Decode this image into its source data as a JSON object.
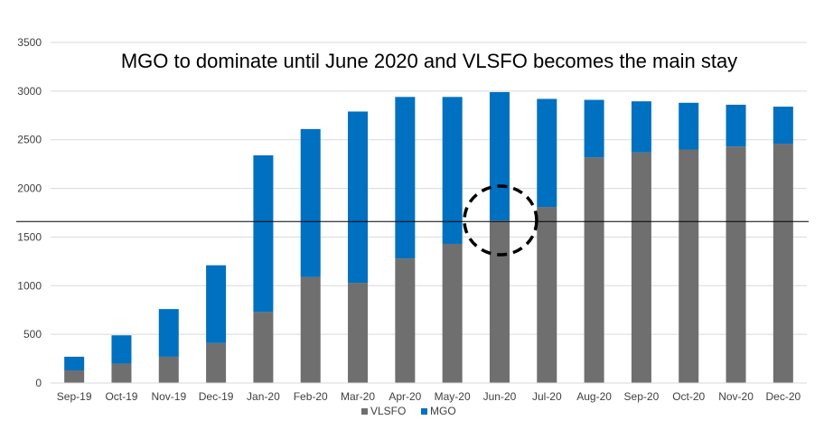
{
  "chart_data": {
    "type": "bar",
    "stacked": true,
    "title": "MGO to dominate until June 2020 and VLSFO becomes the main stay",
    "xlabel": "",
    "ylabel": "",
    "ylim": [
      0,
      3500
    ],
    "yticks": [
      0,
      500,
      1000,
      1500,
      2000,
      2500,
      3000,
      3500
    ],
    "grid": true,
    "legend_position": "bottom",
    "categories": [
      "Sep-19",
      "Oct-19",
      "Nov-19",
      "Dec-19",
      "Jan-20",
      "Feb-20",
      "Mar-20",
      "Apr-20",
      "May-20",
      "Jun-20",
      "Jul-20",
      "Aug-20",
      "Sep-20",
      "Oct-20",
      "Nov-20",
      "Dec-20"
    ],
    "series": [
      {
        "name": "VLSFO",
        "color": "#6f6f6f",
        "values": [
          130,
          200,
          270,
          410,
          730,
          1090,
          1030,
          1280,
          1430,
          1670,
          1810,
          2320,
          2370,
          2400,
          2430,
          2460
        ]
      },
      {
        "name": "MGO",
        "color": "#0070c0",
        "values": [
          140,
          290,
          490,
          800,
          1610,
          1520,
          1760,
          1660,
          1510,
          1320,
          1110,
          590,
          525,
          480,
          430,
          380
        ]
      }
    ],
    "annotations": {
      "reference_line_value": 1660,
      "highlight_category": "Jun-20"
    }
  }
}
